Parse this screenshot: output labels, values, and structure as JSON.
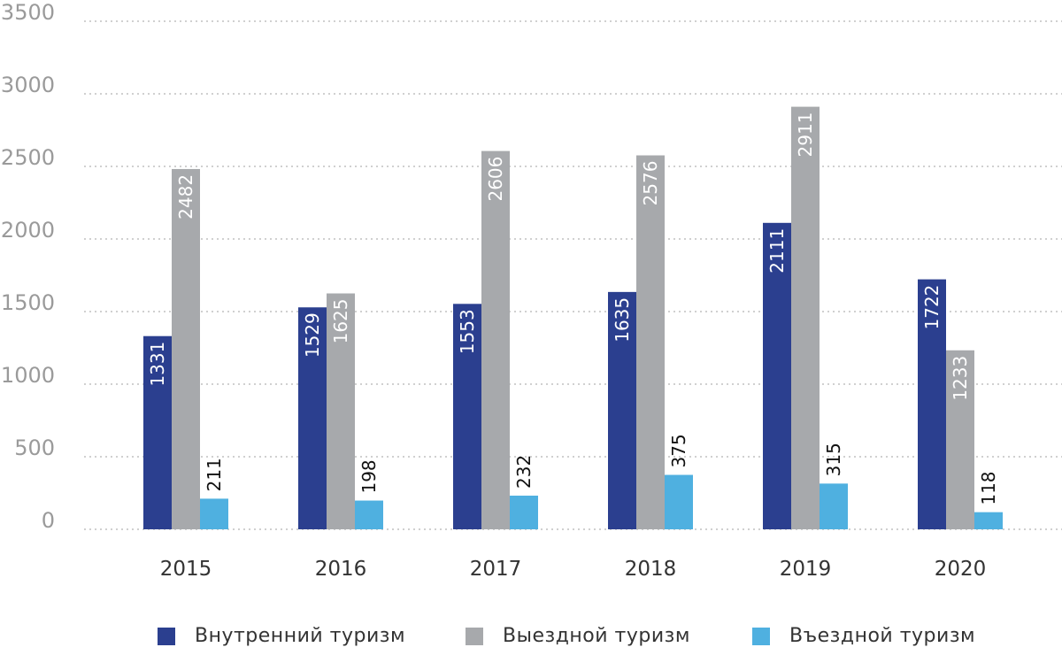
{
  "chart_data": {
    "type": "bar",
    "categories": [
      "2015",
      "2016",
      "2017",
      "2018",
      "2019",
      "2020"
    ],
    "series": [
      {
        "name": "Внутренний туризм",
        "color": "#2b3f8f",
        "values": [
          1331,
          1529,
          1553,
          1635,
          2111,
          1722
        ]
      },
      {
        "name": "Выездной туризм",
        "color": "#a7a9ac",
        "values": [
          2482,
          1625,
          2606,
          2576,
          2911,
          1233
        ]
      },
      {
        "name": "Въездной туризм",
        "color": "#4fb0e0",
        "values": [
          211,
          198,
          232,
          375,
          315,
          118
        ]
      }
    ],
    "yticks": [
      "0",
      "500",
      "1000",
      "1500",
      "2000",
      "2500",
      "3000",
      "3500"
    ],
    "ylim": [
      0,
      3500
    ],
    "grid": true,
    "data_labels": true,
    "legend_position": "bottom",
    "title": "",
    "xlabel": "",
    "ylabel": ""
  }
}
